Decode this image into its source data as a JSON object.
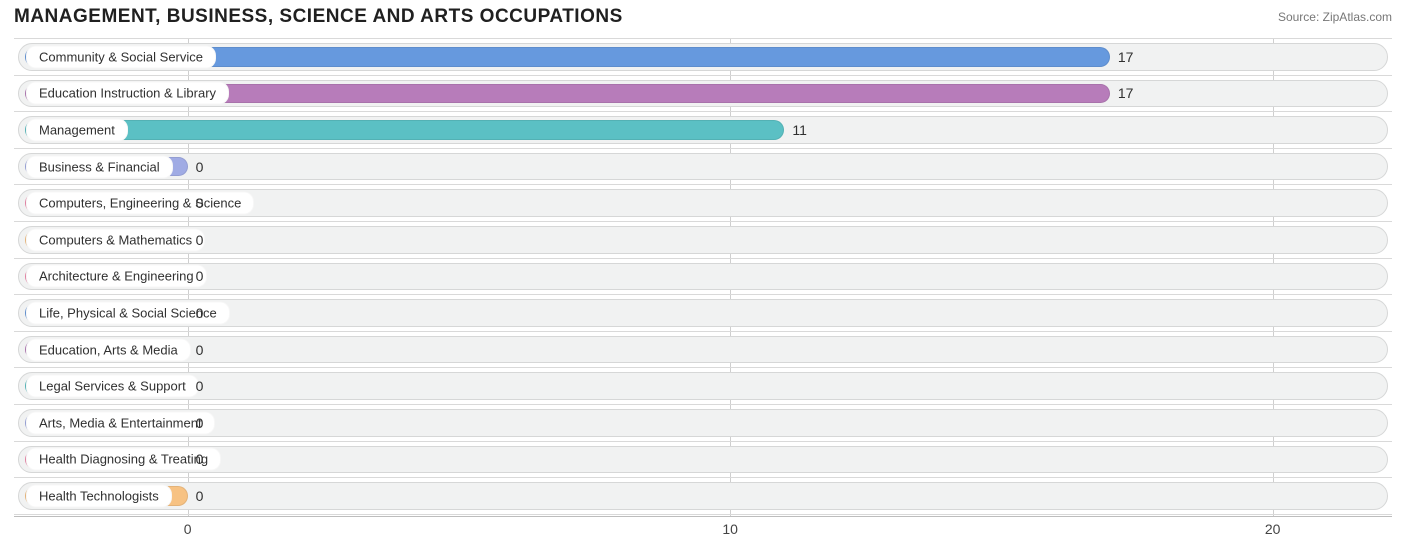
{
  "title": "MANAGEMENT, BUSINESS, SCIENCE AND ARTS OCCUPATIONS",
  "source_label": "Source: ",
  "source_name": "ZipAtlas.com",
  "chart": {
    "type": "bar-horizontal",
    "background_color": "#ffffff",
    "track_color": "#f1f2f2",
    "track_border_color": "#d6d7d7",
    "grid_color": "#cfcfcf",
    "row_divider_color": "#d9d9d9",
    "axis_color": "#bdbdbd",
    "title_color": "#202020",
    "title_fontsize": 19,
    "label_fontsize": 13,
    "value_fontsize": 14,
    "tick_fontsize": 14,
    "xmin": -3.2,
    "xmax": 22.2,
    "xticks": [
      0,
      10,
      20
    ],
    "bar_origin_x": -3.0,
    "color_cycle": [
      "#6699de",
      "#b77cba",
      "#5bc0c4",
      "#a0abe4",
      "#f48bae",
      "#f7c283"
    ],
    "rows": [
      {
        "label": "Community & Social Service",
        "value": 17,
        "color": "#6699de"
      },
      {
        "label": "Education Instruction & Library",
        "value": 17,
        "color": "#b77cba"
      },
      {
        "label": "Management",
        "value": 11,
        "color": "#5bc0c4"
      },
      {
        "label": "Business & Financial",
        "value": 0,
        "color": "#a0abe4"
      },
      {
        "label": "Computers, Engineering & Science",
        "value": 0,
        "color": "#f48bae"
      },
      {
        "label": "Computers & Mathematics",
        "value": 0,
        "color": "#f7c283"
      },
      {
        "label": "Architecture & Engineering",
        "value": 0,
        "color": "#f48bae"
      },
      {
        "label": "Life, Physical & Social Science",
        "value": 0,
        "color": "#6699de"
      },
      {
        "label": "Education, Arts & Media",
        "value": 0,
        "color": "#b77cba"
      },
      {
        "label": "Legal Services & Support",
        "value": 0,
        "color": "#5bc0c4"
      },
      {
        "label": "Arts, Media & Entertainment",
        "value": 0,
        "color": "#a0abe4"
      },
      {
        "label": "Health Diagnosing & Treating",
        "value": 0,
        "color": "#f48bae"
      },
      {
        "label": "Health Technologists",
        "value": 0,
        "color": "#f7c283"
      }
    ]
  }
}
